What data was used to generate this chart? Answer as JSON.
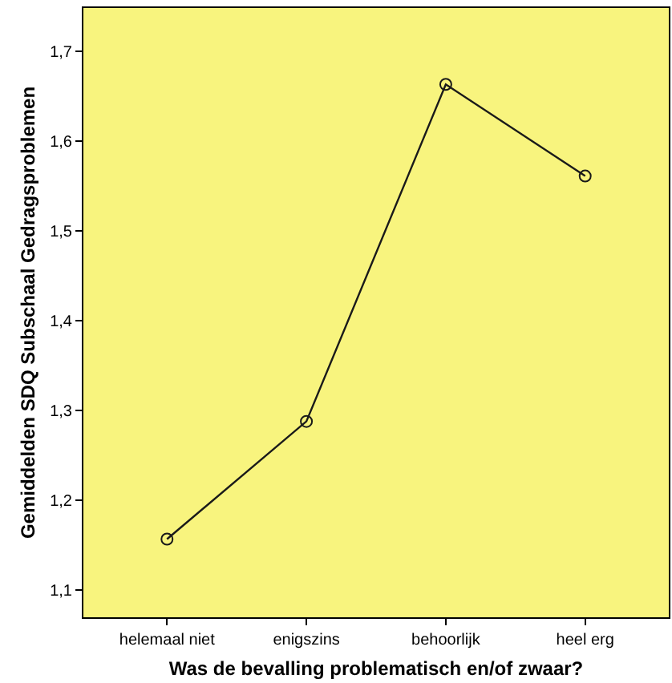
{
  "chart_data": {
    "type": "line",
    "xlabel": "Was de bevalling problematisch en/of zwaar?",
    "ylabel": "Gemiddelden SDQ Subschaal Gedragsproblemen",
    "categories": [
      "helemaal niet",
      "enigszins",
      "behoorlijk",
      "heel erg"
    ],
    "series": [
      {
        "color": "#1a1a1a",
        "values": [
          1.157,
          1.288,
          1.663,
          1.561
        ]
      }
    ],
    "ylim": [
      1.07,
      1.748
    ],
    "yticks": [
      {
        "value": 1.1,
        "label": "1,1"
      },
      {
        "value": 1.2,
        "label": "1,2"
      },
      {
        "value": 1.3,
        "label": "1,3"
      },
      {
        "value": 1.4,
        "label": "1,4"
      },
      {
        "value": 1.5,
        "label": "1,5"
      },
      {
        "value": 1.6,
        "label": "1,6"
      },
      {
        "value": 1.7,
        "label": "1,7"
      }
    ],
    "grid": false,
    "legend": false,
    "marker": "circle",
    "line_style": "solid"
  }
}
